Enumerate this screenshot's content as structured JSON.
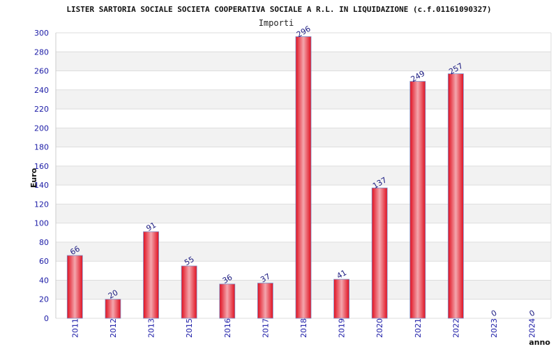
{
  "chart_data": {
    "type": "bar",
    "title": "LISTER SARTORIA SOCIALE SOCIETA COOPERATIVA SOCIALE A R.L. IN LIQUIDAZIONE (c.f.01161090327)",
    "subtitle": "Importi",
    "xlabel": "anno",
    "ylabel": "Euro",
    "categories": [
      "2011",
      "2012",
      "2013",
      "2015",
      "2016",
      "2017",
      "2018",
      "2019",
      "2020",
      "2021",
      "2022",
      "2023",
      "2024"
    ],
    "values": [
      66,
      20,
      91,
      55,
      36,
      37,
      296,
      41,
      137,
      249,
      257,
      0,
      0
    ],
    "ylim": [
      0,
      300
    ],
    "yticks": [
      0,
      20,
      40,
      60,
      80,
      100,
      120,
      140,
      160,
      180,
      200,
      220,
      240,
      260,
      280,
      300
    ],
    "grid": true,
    "legend": "none",
    "colors": {
      "bar_edge": "#e01020",
      "bar_center": "#f4a6ad",
      "band": "#f2f2f2",
      "grid": "#dddddd",
      "tick_text": "#1a1aa6",
      "label_text": "#1a1a80"
    }
  }
}
